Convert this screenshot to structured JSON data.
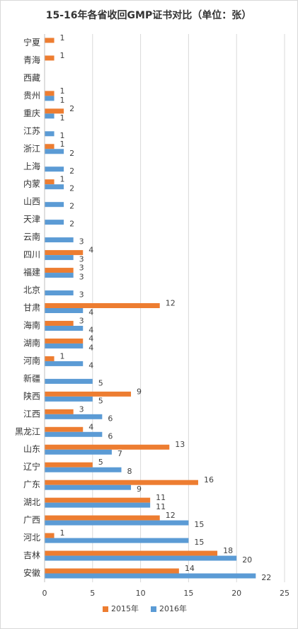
{
  "chart_data": {
    "type": "bar",
    "orientation": "horizontal",
    "title": "15-16年各省收回GMP证书对比（单位：张）",
    "categories": [
      "宁夏",
      "青海",
      "西藏",
      "贵州",
      "重庆",
      "江苏",
      "浙江",
      "上海",
      "内蒙",
      "山西",
      "天津",
      "云南",
      "四川",
      "福建",
      "北京",
      "甘肃",
      "海南",
      "湖南",
      "河南",
      "新疆",
      "陕西",
      "江西",
      "黑龙江",
      "山东",
      "辽宁",
      "广东",
      "湖北",
      "广西",
      "河北",
      "吉林",
      "安徽"
    ],
    "series": [
      {
        "name": "2015年",
        "color": "#ED7D31",
        "values": [
          1,
          1,
          null,
          1,
          2,
          null,
          1,
          null,
          1,
          null,
          null,
          null,
          4,
          3,
          null,
          12,
          3,
          4,
          1,
          null,
          9,
          3,
          4,
          13,
          5,
          16,
          11,
          12,
          1,
          18,
          14
        ]
      },
      {
        "name": "2016年",
        "color": "#5B9BD5",
        "values": [
          null,
          null,
          null,
          1,
          1,
          1,
          2,
          2,
          2,
          2,
          2,
          3,
          3,
          3,
          3,
          4,
          4,
          4,
          4,
          5,
          5,
          6,
          6,
          7,
          8,
          9,
          11,
          15,
          15,
          20,
          22
        ]
      }
    ],
    "xlim": [
      0,
      25
    ],
    "xticks": [
      0,
      5,
      10,
      15,
      20,
      25
    ],
    "grid": true,
    "legend": "bottom"
  }
}
